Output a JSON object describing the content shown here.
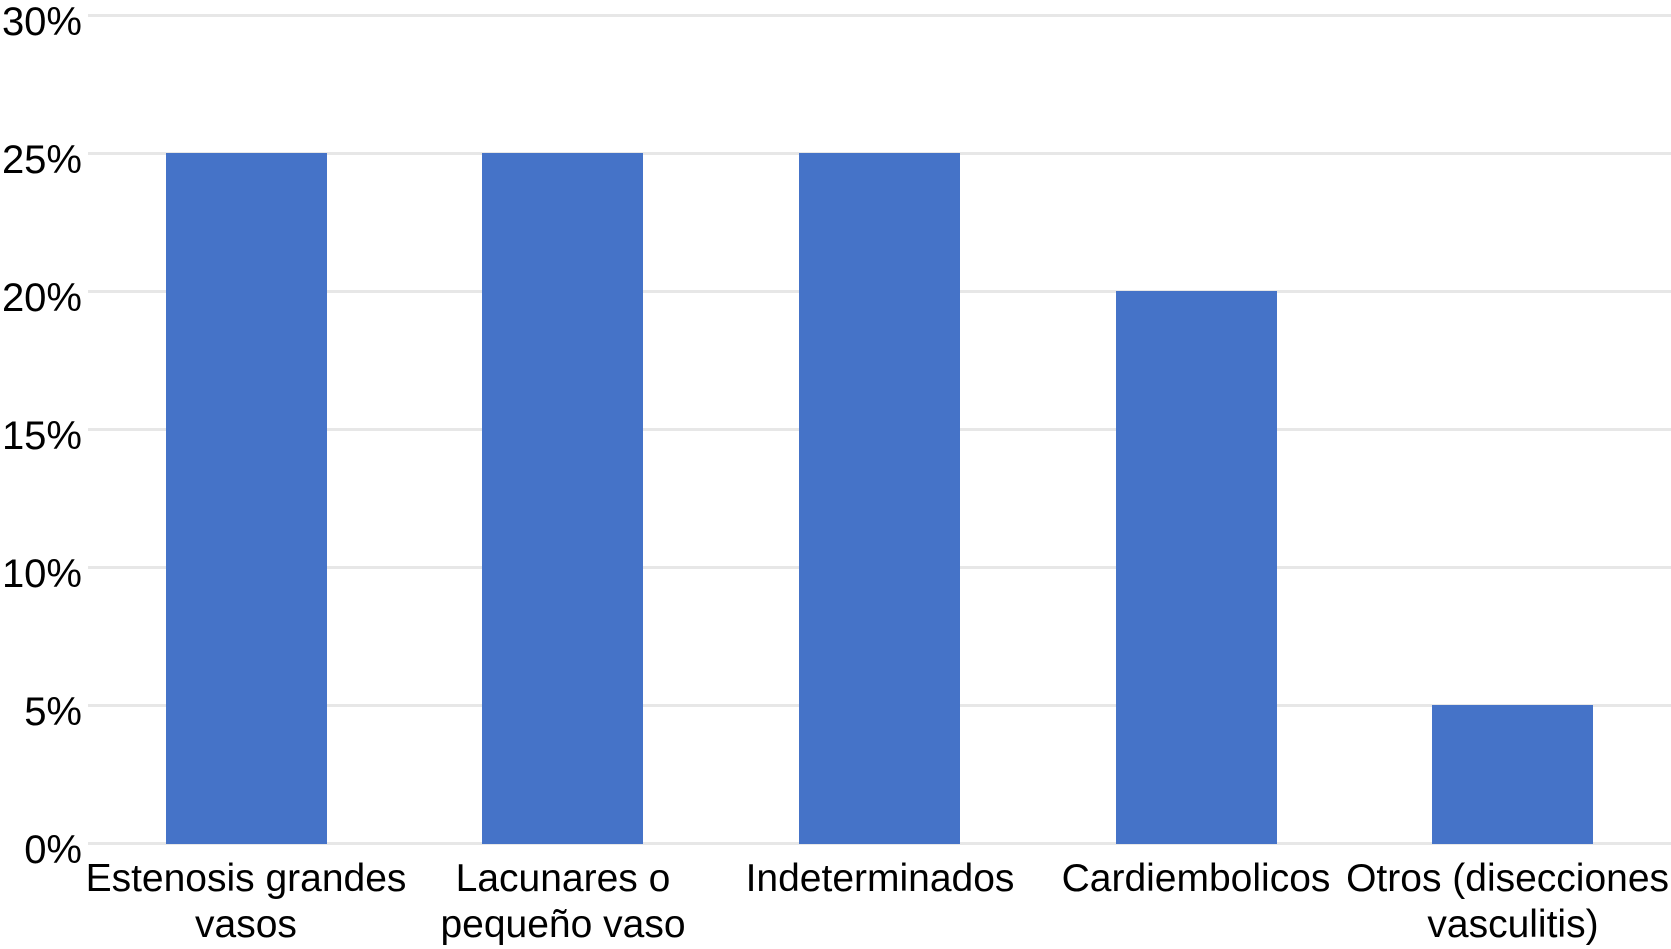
{
  "page": {
    "background_color": "#ffffff"
  },
  "chart_data": {
    "type": "bar",
    "title": "",
    "xlabel": "",
    "ylabel": "",
    "categories": [
      "Estenosis grandes vasos",
      "Lacunares o pequeño vaso",
      "Indeterminados",
      "Cardiembolicos",
      "Otros (disecciones, vasculitis)"
    ],
    "category_display": [
      "Estenosis grandes\nvasos",
      "Lacunares o\npequeño vaso",
      "Indeterminados",
      "Cardiembolicos",
      "Otros (disecciones,\nvasculitis)"
    ],
    "values": [
      25,
      25,
      25,
      20,
      5
    ],
    "unit": "%",
    "ylim": [
      0,
      30
    ],
    "ytick_step": 5,
    "ytick_labels": [
      "0%",
      "5%",
      "10%",
      "15%",
      "20%",
      "25%",
      "30%"
    ],
    "bar_color": "#4573c8",
    "gridline_color": "#e7e7e7",
    "text_color": "#000000",
    "grid": "horizontal",
    "legend_position": "none"
  }
}
